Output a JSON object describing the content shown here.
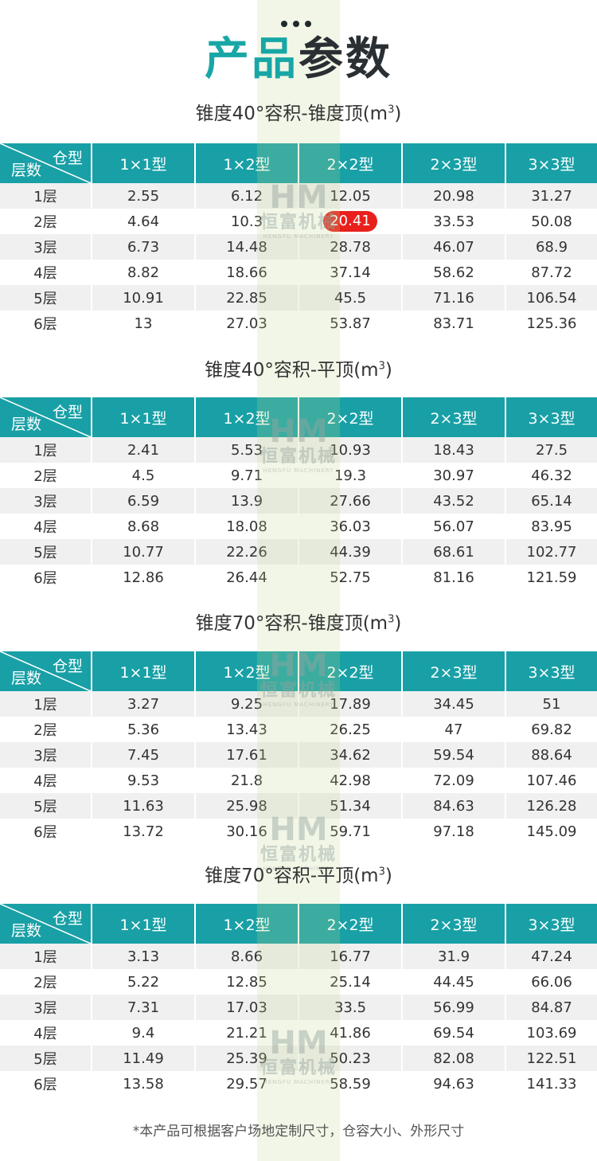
{
  "page": {
    "title_highlight": "产品",
    "title_dark": "参数",
    "footnote": "*本产品可根据客户场地定制尺寸，仓容大小、外形尺寸"
  },
  "watermark": {
    "mark": "HM",
    "text_cn": "恒富机械",
    "text_en": "HENGFU MACHINERY"
  },
  "table_header": {
    "corner_top": "仓型",
    "corner_bottom": "层数",
    "columns": [
      "1×1型",
      "1×2型",
      "2×2型",
      "2×3型",
      "3×3型"
    ]
  },
  "tables": [
    {
      "title": "锥度40°容积-锥度顶(m",
      "title_sup": "3",
      "title_end": ")",
      "rows": [
        {
          "label": "1层",
          "values": [
            "2.55",
            "6.12",
            "12.05",
            "20.98",
            "31.27"
          ]
        },
        {
          "label": "2层",
          "values": [
            "4.64",
            "10.3",
            "20.41",
            "33.53",
            "50.08"
          ]
        },
        {
          "label": "3层",
          "values": [
            "6.73",
            "14.48",
            "28.78",
            "46.07",
            "68.9"
          ]
        },
        {
          "label": "4层",
          "values": [
            "8.82",
            "18.66",
            "37.14",
            "58.62",
            "87.72"
          ]
        },
        {
          "label": "5层",
          "values": [
            "10.91",
            "22.85",
            "45.5",
            "71.16",
            "106.54"
          ]
        },
        {
          "label": "6层",
          "values": [
            "13",
            "27.03",
            "53.87",
            "83.71",
            "125.36"
          ]
        }
      ]
    },
    {
      "title": "锥度40°容积-平顶(m",
      "title_sup": "3",
      "title_end": ")",
      "rows": [
        {
          "label": "1层",
          "values": [
            "2.41",
            "5.53",
            "10.93",
            "18.43",
            "27.5"
          ]
        },
        {
          "label": "2层",
          "values": [
            "4.5",
            "9.71",
            "19.3",
            "30.97",
            "46.32"
          ]
        },
        {
          "label": "3层",
          "values": [
            "6.59",
            "13.9",
            "27.66",
            "43.52",
            "65.14"
          ]
        },
        {
          "label": "4层",
          "values": [
            "8.68",
            "18.08",
            "36.03",
            "56.07",
            "83.95"
          ]
        },
        {
          "label": "5层",
          "values": [
            "10.77",
            "22.26",
            "44.39",
            "68.61",
            "102.77"
          ]
        },
        {
          "label": "6层",
          "values": [
            "12.86",
            "26.44",
            "52.75",
            "81.16",
            "121.59"
          ]
        }
      ]
    },
    {
      "title": "锥度70°容积-锥度顶(m",
      "title_sup": "3",
      "title_end": ")",
      "rows": [
        {
          "label": "1层",
          "values": [
            "3.27",
            "9.25",
            "17.89",
            "34.45",
            "51"
          ]
        },
        {
          "label": "2层",
          "values": [
            "5.36",
            "13.43",
            "26.25",
            "47",
            "69.82"
          ]
        },
        {
          "label": "3层",
          "values": [
            "7.45",
            "17.61",
            "34.62",
            "59.54",
            "88.64"
          ]
        },
        {
          "label": "4层",
          "values": [
            "9.53",
            "21.8",
            "42.98",
            "72.09",
            "107.46"
          ]
        },
        {
          "label": "5层",
          "values": [
            "11.63",
            "25.98",
            "51.34",
            "84.63",
            "126.28"
          ]
        },
        {
          "label": "6层",
          "values": [
            "13.72",
            "30.16",
            "59.71",
            "97.18",
            "145.09"
          ]
        }
      ]
    },
    {
      "title": "锥度70°容积-平顶(m",
      "title_sup": "3",
      "title_end": ")",
      "rows": [
        {
          "label": "1层",
          "values": [
            "3.13",
            "8.66",
            "16.77",
            "31.9",
            "47.24"
          ]
        },
        {
          "label": "2层",
          "values": [
            "5.22",
            "12.85",
            "25.14",
            "44.45",
            "66.06"
          ]
        },
        {
          "label": "3层",
          "values": [
            "7.31",
            "17.03",
            "33.5",
            "56.99",
            "84.87"
          ]
        },
        {
          "label": "4层",
          "values": [
            "9.4",
            "21.21",
            "41.86",
            "69.54",
            "103.69"
          ]
        },
        {
          "label": "5层",
          "values": [
            "11.49",
            "25.39",
            "50.23",
            "82.08",
            "122.51"
          ]
        },
        {
          "label": "6层",
          "values": [
            "13.58",
            "29.57",
            "58.59",
            "94.63",
            "141.33"
          ]
        }
      ]
    }
  ],
  "highlight": {
    "table": 0,
    "row": 1,
    "col": 2,
    "color": "#e8201c"
  },
  "colors": {
    "accent": "#18a0a6",
    "title_teal": "#18a6a6",
    "title_dark": "#2a2f33",
    "stripe": "#f0f0f0"
  }
}
